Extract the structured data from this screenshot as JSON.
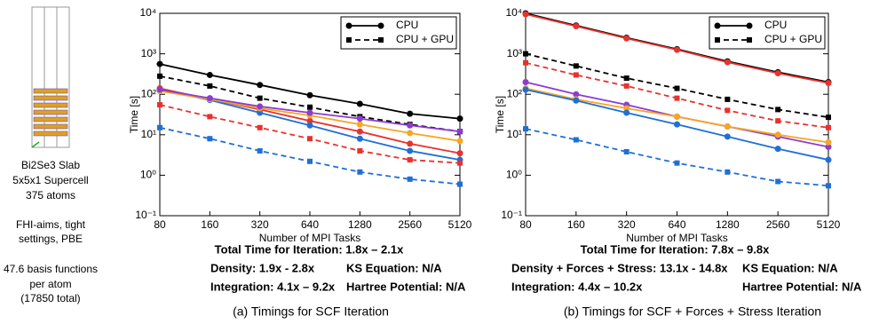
{
  "structure_panel": {
    "lines": [
      "Bi2Se3 Slab",
      "5x5x1 Supercell",
      "375 atoms",
      "FHI-aims, tight",
      "settings, PBE",
      "47.6 basis functions",
      "per atom",
      "(17850 total)"
    ]
  },
  "chart_data": [
    {
      "type": "line",
      "xlabel": "Number of MPI Tasks",
      "ylabel": "Time [s]",
      "log_y": true,
      "categories": [
        "80",
        "160",
        "320",
        "640",
        "1280",
        "2560",
        "5120"
      ],
      "ylim": [
        0.1,
        10000
      ],
      "yticks": [
        {
          "value": 0.1,
          "label": "10⁻¹"
        },
        {
          "value": 1,
          "label": "10⁰"
        },
        {
          "value": 10,
          "label": "10¹"
        },
        {
          "value": 100,
          "label": "10²"
        },
        {
          "value": 1000,
          "label": "10³"
        },
        {
          "value": 10000,
          "label": "10⁴"
        }
      ],
      "legend": [
        {
          "name": "CPU",
          "dashed": false
        },
        {
          "name": "CPU + GPU",
          "dashed": true
        }
      ],
      "legend_position": "upper right",
      "series": [
        {
          "color": "#000000",
          "dashed": false,
          "values": [
            560,
            300,
            170,
            95,
            58,
            33,
            25
          ]
        },
        {
          "color": "#000000",
          "dashed": true,
          "values": [
            280,
            160,
            80,
            48,
            28,
            18,
            12
          ]
        },
        {
          "color": "#e8322d",
          "dashed": false,
          "values": [
            140,
            75,
            42,
            22,
            12,
            6,
            3.5
          ]
        },
        {
          "color": "#1f6fd6",
          "dashed": false,
          "values": [
            130,
            72,
            35,
            17,
            8,
            4,
            2.4
          ]
        },
        {
          "color": "#f5a623",
          "dashed": false,
          "values": [
            120,
            75,
            45,
            30,
            18,
            11,
            7
          ]
        },
        {
          "color": "#8e3bd0",
          "dashed": false,
          "values": [
            130,
            80,
            50,
            35,
            25,
            17,
            12
          ]
        },
        {
          "color": "#e8322d",
          "dashed": true,
          "values": [
            55,
            28,
            15,
            8,
            4,
            2.4,
            2
          ]
        },
        {
          "color": "#1f6fd6",
          "dashed": true,
          "values": [
            15,
            8,
            4,
            2.2,
            1.2,
            0.8,
            0.6
          ]
        }
      ],
      "summary": "Total Time for Iteration: 1.8x – 2.1x",
      "annotations": [
        {
          "text": "Density: 1.9x - 2.8x",
          "color": "#e8322d"
        },
        {
          "text": "KS Equation: N/A",
          "color": "#f5a623"
        },
        {
          "text": "Integration: 4.1x – 9.2x",
          "color": "#1f6fd6"
        },
        {
          "text": "Hartree Potential: N/A",
          "color": "#8e3bd0"
        }
      ],
      "caption": "(a) Timings for SCF Iteration"
    },
    {
      "type": "line",
      "xlabel": "Number of MPI Tasks",
      "ylabel": "Time [s]",
      "log_y": true,
      "categories": [
        "80",
        "160",
        "320",
        "640",
        "1280",
        "2560",
        "5120"
      ],
      "ylim": [
        0.1,
        10000
      ],
      "yticks": [
        {
          "value": 0.1,
          "label": "10⁻¹"
        },
        {
          "value": 1,
          "label": "10⁰"
        },
        {
          "value": 10,
          "label": "10¹"
        },
        {
          "value": 100,
          "label": "10²"
        },
        {
          "value": 1000,
          "label": "10³"
        },
        {
          "value": 10000,
          "label": "10⁴"
        }
      ],
      "legend": [
        {
          "name": "CPU",
          "dashed": false
        },
        {
          "name": "CPU + GPU",
          "dashed": true
        }
      ],
      "legend_position": "upper right",
      "series": [
        {
          "color": "#000000",
          "dashed": false,
          "values": [
            10000,
            5000,
            2500,
            1300,
            650,
            350,
            200
          ]
        },
        {
          "color": "#e8322d",
          "dashed": false,
          "values": [
            9500,
            4800,
            2400,
            1250,
            620,
            330,
            190
          ]
        },
        {
          "color": "#000000",
          "dashed": true,
          "values": [
            1000,
            500,
            250,
            140,
            75,
            42,
            27
          ]
        },
        {
          "color": "#e8322d",
          "dashed": true,
          "values": [
            600,
            300,
            160,
            80,
            40,
            22,
            15
          ]
        },
        {
          "color": "#8e3bd0",
          "dashed": false,
          "values": [
            200,
            100,
            55,
            28,
            16,
            9,
            5
          ]
        },
        {
          "color": "#f5a623",
          "dashed": false,
          "values": [
            140,
            75,
            45,
            28,
            16,
            10,
            6.5
          ]
        },
        {
          "color": "#1f6fd6",
          "dashed": false,
          "values": [
            130,
            70,
            35,
            18,
            9,
            4.5,
            2.4
          ]
        },
        {
          "color": "#1f6fd6",
          "dashed": true,
          "values": [
            14,
            7.5,
            3.8,
            2,
            1.2,
            0.7,
            0.55
          ]
        }
      ],
      "summary": "Total Time for Iteration: 7.8x – 9.8x",
      "annotations": [
        {
          "text": "Density + Forces + Stress: 13.1x - 14.8x",
          "color": "#e8322d"
        },
        {
          "text": "KS Equation: N/A",
          "color": "#f5a623"
        },
        {
          "text": "Integration: 4.4x – 10.2x",
          "color": "#1f6fd6"
        },
        {
          "text": "Hartree Potential: N/A",
          "color": "#8e3bd0"
        }
      ],
      "caption": "(b) Timings for SCF + Forces + Stress Iteration"
    }
  ]
}
